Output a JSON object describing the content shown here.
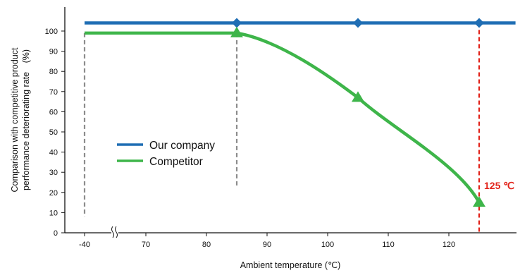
{
  "chart_data": {
    "type": "line",
    "title": "",
    "xlabel": "Ambient temperature (℃)",
    "ylabel_lines": [
      "Comparison with competitive product",
      "performance deteriorating rate　(%)"
    ],
    "x_ticks": [
      "-40",
      "70",
      "80",
      "90",
      "100",
      "110",
      "120"
    ],
    "y_ticks": [
      "0",
      "10",
      "20",
      "30",
      "40",
      "50",
      "60",
      "70",
      "80",
      "90",
      "100"
    ],
    "ylim": [
      0,
      110
    ],
    "x_axis_break": true,
    "grid": false,
    "legend_position": "middle-left",
    "series": [
      {
        "name": "Our company",
        "color": "#1f6eb4",
        "marker": "diamond",
        "x": [
          -40,
          85,
          105,
          125,
          131
        ],
        "y": [
          104,
          104,
          104,
          104,
          104
        ],
        "marker_x": [
          85,
          105,
          125
        ]
      },
      {
        "name": "Competitor",
        "color": "#3eb54a",
        "marker": "triangle",
        "x": [
          -40,
          85,
          105,
          125
        ],
        "y": [
          99,
          99,
          67,
          15
        ],
        "marker_x": [
          85,
          105,
          125
        ]
      }
    ],
    "reference_lines": [
      {
        "x": -40,
        "y_range": [
          8,
          99
        ],
        "color": "#8c8c8c"
      },
      {
        "x": 85,
        "y_range": [
          23,
          99
        ],
        "color": "#8c8c8c"
      },
      {
        "x": 125,
        "y_range": [
          0,
          104
        ],
        "color": "#e2231a"
      }
    ],
    "annotation": {
      "text": "125 ℃",
      "x": 125,
      "y": 23,
      "color": "#e2231a"
    }
  }
}
